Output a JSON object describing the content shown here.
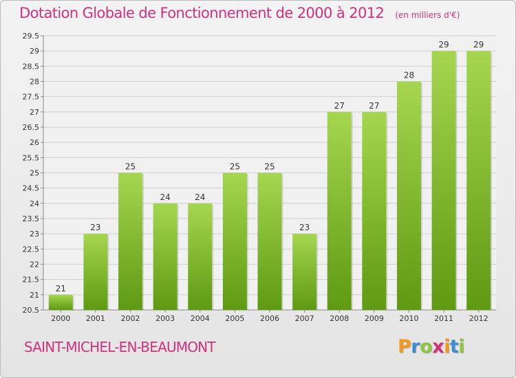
{
  "title": "Dotation Globale de Fonctionnement de 2000 à 2012",
  "unit": "(en milliers d'€)",
  "commune": "SAINT-MICHEL-EN-BEAUMONT",
  "logo": {
    "letters": [
      "P",
      "r",
      "o",
      "x",
      "i",
      "t",
      "i"
    ],
    "colors": [
      "#f29a1f",
      "#3d8fd4",
      "#8cc63f",
      "#d0317c",
      "#f29a1f",
      "#3d8fd4",
      "#8cc63f"
    ]
  },
  "colors": {
    "accent": "#d0317c",
    "bar_top": "#a6d64f",
    "bar_bottom": "#5e9a12",
    "grid": "#cfcfcf"
  },
  "chart_data": {
    "type": "bar",
    "categories": [
      "2000",
      "2001",
      "2002",
      "2003",
      "2004",
      "2005",
      "2006",
      "2007",
      "2008",
      "2009",
      "2010",
      "2011",
      "2012"
    ],
    "values": [
      21,
      23,
      25,
      24,
      24,
      25,
      25,
      23,
      27,
      27,
      28,
      29,
      29
    ],
    "ylim": [
      20.5,
      29.5
    ],
    "yticks": [
      "20.5",
      "21",
      "21.5",
      "22",
      "22.5",
      "23",
      "23.5",
      "24",
      "24.5",
      "25",
      "25.5",
      "26",
      "26.5",
      "27",
      "27.5",
      "28",
      "28.5",
      "29",
      "29.5"
    ],
    "grid": true,
    "data_labels": true
  }
}
